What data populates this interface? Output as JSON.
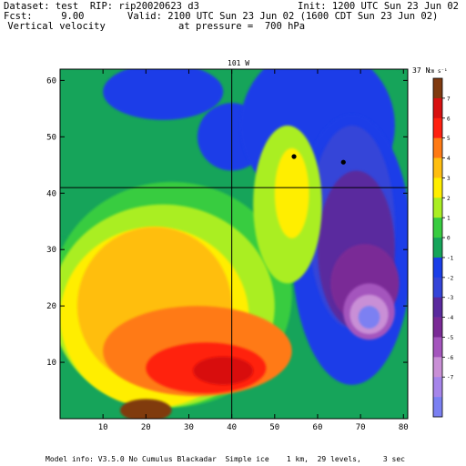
{
  "header": {
    "dataset_line": "Dataset: test  RIP: rip20020623 d3",
    "init_line": "Init: 1200 UTC Sun 23 Jun 02",
    "fcst_line": "Fcst:     9.00",
    "valid_line": "Valid: 2100 UTC Sun 23 Jun 02 (1600 CDT Sun 23 Jun 02)",
    "field_line": " Vertical velocity",
    "pressure_line": "at pressure =  700 hPa"
  },
  "map_labels": {
    "meridian_label": "101 W",
    "parallel_label": "37 N",
    "units_label": "cm s⁻¹"
  },
  "footer": {
    "model_info": "Model info: V3.5.0 No Cumulus Blackadar  Simple ice    1 km,  29 levels,     3 sec"
  },
  "colors": {
    "c_m8": "#7b80f2",
    "c_m7": "#a685ea",
    "c_m6": "#c98fd6",
    "c_m5": "#a455bd",
    "c_m4": "#7a2a96",
    "c_m3": "#5a2a9e",
    "c_m2": "#3444d8",
    "c_m1": "#1a3ee8",
    "c_0": "#16a45a",
    "c_1": "#38cc40",
    "c_2": "#aaee22",
    "c_3": "#ffee00",
    "c_4": "#ffbe10",
    "c_5": "#ff7a14",
    "c_6": "#ff2010",
    "c_7": "#d81010",
    "c_8": "#803a10"
  },
  "chart_data": {
    "type": "heatmap",
    "field": "Vertical velocity",
    "xlim": [
      0,
      81
    ],
    "ylim": [
      0,
      62
    ],
    "x_ticks": [
      10,
      20,
      30,
      40,
      50,
      60,
      70,
      80
    ],
    "y_ticks": [
      10,
      20,
      30,
      40,
      50,
      60
    ],
    "reference_lines": {
      "meridian_x": 40,
      "parallel_y": 41
    },
    "stations": [
      {
        "x": 54.5,
        "y": 46.5
      },
      {
        "x": 66,
        "y": 45.5
      }
    ],
    "colorbar": {
      "levels": [
        7,
        6,
        5,
        4,
        3,
        2,
        1,
        0,
        -1,
        -2,
        -3,
        -4,
        -5,
        -6,
        -7
      ],
      "colors": [
        "#803a10",
        "#d81010",
        "#ff2010",
        "#ff7a14",
        "#ffbe10",
        "#ffee00",
        "#aaee22",
        "#38cc40",
        "#16a45a",
        "#1a3ee8",
        "#3444d8",
        "#5a2a9e",
        "#7a2a96",
        "#a455bd",
        "#c98fd6",
        "#a685ea",
        "#7b80f2"
      ]
    },
    "regions": [
      {
        "level": -1,
        "color": "#16a45a",
        "cx": 30,
        "cy": 50,
        "rx": 60,
        "ry": 20
      },
      {
        "level": -2,
        "color": "#1a3ee8",
        "cx": 24,
        "cy": 58,
        "rx": 14,
        "ry": 5
      },
      {
        "level": -2,
        "color": "#1a3ee8",
        "cx": 40,
        "cy": 50,
        "rx": 8,
        "ry": 6
      },
      {
        "level": -2,
        "color": "#1a3ee8",
        "cx": 60,
        "cy": 52,
        "rx": 18,
        "ry": 14
      },
      {
        "level": -2,
        "color": "#1a3ee8",
        "cx": 68,
        "cy": 30,
        "rx": 14,
        "ry": 24
      },
      {
        "level": -3,
        "color": "#3444d8",
        "cx": 68,
        "cy": 34,
        "rx": 10,
        "ry": 18
      },
      {
        "level": -4,
        "color": "#5a2a9e",
        "cx": 69,
        "cy": 30,
        "rx": 9,
        "ry": 14
      },
      {
        "level": -5,
        "color": "#7a2a96",
        "cx": 71,
        "cy": 24,
        "rx": 8,
        "ry": 7
      },
      {
        "level": -6,
        "color": "#a455bd",
        "cx": 72,
        "cy": 19,
        "rx": 6,
        "ry": 5
      },
      {
        "level": -7,
        "color": "#c98fd6",
        "cx": 72,
        "cy": 18.5,
        "rx": 4.5,
        "ry": 3.5
      },
      {
        "level": -8,
        "color": "#7b80f2",
        "cx": 72,
        "cy": 18,
        "rx": 2.5,
        "ry": 2
      },
      {
        "level": 1,
        "color": "#38cc40",
        "cx": 26,
        "cy": 22,
        "rx": 28,
        "ry": 20
      },
      {
        "level": 2,
        "color": "#aaee22",
        "cx": 24,
        "cy": 20,
        "rx": 26,
        "ry": 18
      },
      {
        "level": 3,
        "color": "#ffee00",
        "cx": 22,
        "cy": 18,
        "rx": 22,
        "ry": 16
      },
      {
        "level": 4,
        "color": "#ffbe10",
        "cx": 22,
        "cy": 20,
        "rx": 18,
        "ry": 14
      },
      {
        "level": 2,
        "color": "#aaee22",
        "cx": 53,
        "cy": 38,
        "rx": 8,
        "ry": 14
      },
      {
        "level": 3,
        "color": "#ffee00",
        "cx": 54,
        "cy": 40,
        "rx": 4,
        "ry": 8
      },
      {
        "level": 5,
        "color": "#ff7a14",
        "cx": 32,
        "cy": 12,
        "rx": 22,
        "ry": 8
      },
      {
        "level": 6,
        "color": "#ff2010",
        "cx": 34,
        "cy": 9,
        "rx": 14,
        "ry": 4.5
      },
      {
        "level": 7,
        "color": "#d81010",
        "cx": 38,
        "cy": 8.5,
        "rx": 7,
        "ry": 2.5
      },
      {
        "level": 8,
        "color": "#803a10",
        "cx": 20,
        "cy": 1.5,
        "rx": 6,
        "ry": 2
      }
    ]
  }
}
